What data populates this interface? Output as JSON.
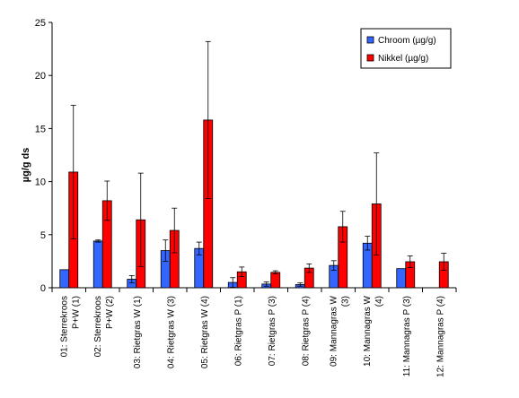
{
  "chart_data": {
    "type": "bar",
    "ylabel": "µg/g ds",
    "ylim": [
      0,
      25
    ],
    "yticks": [
      0,
      5,
      10,
      15,
      20,
      25
    ],
    "grid": false,
    "legend_position": "top-right",
    "categories": [
      [
        "01: Sterrekroos",
        "P+W (1)"
      ],
      [
        "02: Sterrekroos",
        "P+W (2)"
      ],
      [
        "03: Rietgras W (1)"
      ],
      [
        "04: Rietgras W (3)"
      ],
      [
        "05: Rietgras W (4)"
      ],
      [
        "06: Rietgras P (1)"
      ],
      [
        "07: Rietgras P (3)"
      ],
      [
        "08: Rietgras P (4)"
      ],
      [
        "09: Mannagras W",
        "(3)"
      ],
      [
        "10: Mannagras W",
        "(4)"
      ],
      [
        "11: Mannagras P (3)"
      ],
      [
        "12: Mannagras P (4)"
      ]
    ],
    "series": [
      {
        "name": "Chroom (µg/g)",
        "color": "#3366ff",
        "values": [
          1.7,
          4.4,
          0.8,
          3.5,
          3.7,
          0.5,
          0.35,
          0.3,
          2.1,
          4.2,
          1.8,
          null
        ],
        "errors": [
          null,
          0.1,
          0.35,
          1.0,
          0.6,
          0.45,
          0.2,
          0.15,
          0.45,
          0.65,
          null,
          null
        ]
      },
      {
        "name": "Nikkel (µg/g)",
        "color": "#ff0000",
        "values": [
          10.9,
          8.2,
          6.4,
          5.4,
          15.8,
          1.5,
          1.45,
          1.85,
          5.75,
          7.9,
          2.45,
          2.45
        ],
        "errors": [
          6.3,
          1.85,
          4.4,
          2.1,
          7.4,
          0.45,
          0.15,
          0.4,
          1.45,
          4.8,
          0.55,
          0.8
        ]
      }
    ]
  }
}
